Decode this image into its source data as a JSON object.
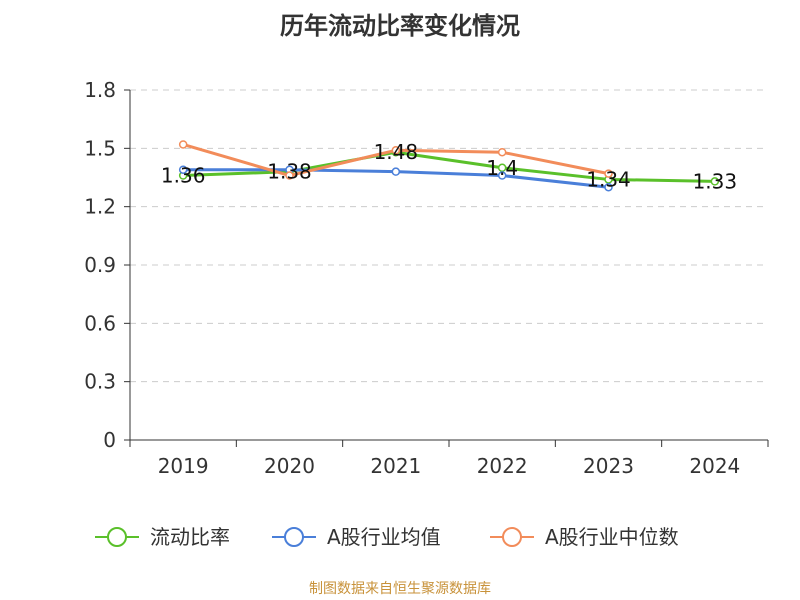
{
  "chart_data": {
    "type": "line",
    "title": "历年流动比率变化情况",
    "categories": [
      "2019",
      "2020",
      "2021",
      "2022",
      "2023",
      "2024"
    ],
    "ylim": [
      0,
      1.8
    ],
    "yticks": [
      "0",
      "0.3",
      "0.6",
      "0.9",
      "1.2",
      "1.5",
      "1.8"
    ],
    "grid": true,
    "legend_position": "bottom",
    "series": [
      {
        "name": "流动比率",
        "color": "#5ac02a",
        "values": [
          1.36,
          1.38,
          1.48,
          1.4,
          1.34,
          1.33
        ],
        "labels": [
          "1.36",
          "1.38",
          "1.48",
          "1.4",
          "1.34",
          "1.33"
        ]
      },
      {
        "name": "A股行业均值",
        "color": "#4a7fd9",
        "values": [
          1.39,
          1.39,
          1.38,
          1.36,
          1.3,
          null
        ]
      },
      {
        "name": "A股行业中位数",
        "color": "#f28c5a",
        "values": [
          1.52,
          1.36,
          1.49,
          1.48,
          1.37,
          null
        ]
      }
    ]
  },
  "footer": {
    "source": "制图数据来自恒生聚源数据库"
  }
}
